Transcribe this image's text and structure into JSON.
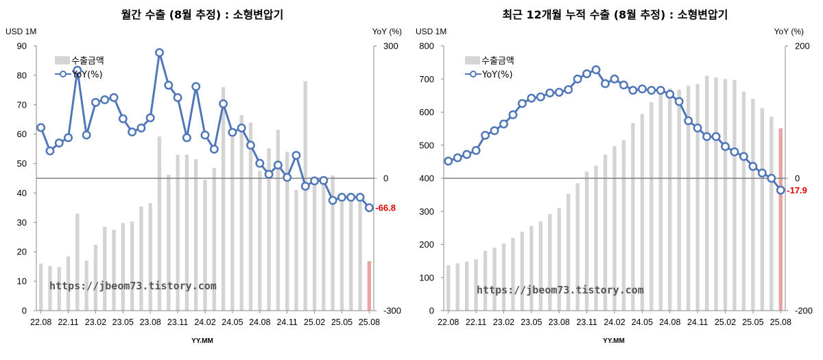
{
  "charts": [
    {
      "id": "monthly",
      "title": "월간 수출 (8월 추정) : 소형변압기",
      "left_unit": "USD 1M",
      "right_unit": "YoY (%)",
      "xlabel": "YY.MM",
      "watermark": "https://jbeom73.tistory.com",
      "last_label": "-66.8",
      "legend": [
        "수출금액",
        "YoY(%)"
      ],
      "left_ticks": [
        "0",
        "10",
        "20",
        "30",
        "40",
        "50",
        "60",
        "70",
        "80",
        "90"
      ],
      "right_ticks": [
        "300",
        "0",
        "-300"
      ],
      "x_ticks": [
        "22.08",
        "22.11",
        "23.02",
        "23.05",
        "23.08",
        "23.11",
        "24.02",
        "24.05",
        "24.08",
        "24.11",
        "25.02",
        "25.05",
        "25.08"
      ]
    },
    {
      "id": "trailing12",
      "title": "최근 12개월 누적 수출 (8월 추정) : 소형변압기",
      "left_unit": "USD 1M",
      "right_unit": "YoY (%)",
      "xlabel": "YY.MM",
      "watermark": "https://jbeom73.tistory.com",
      "last_label": "-17.9",
      "legend": [
        "수출금액",
        "YoY(%)"
      ],
      "left_ticks": [
        "0",
        "100",
        "200",
        "300",
        "400",
        "500",
        "600",
        "700",
        "800"
      ],
      "right_ticks": [
        "200",
        "0",
        "-200"
      ],
      "x_ticks": [
        "22.08",
        "22.11",
        "23.02",
        "23.05",
        "23.08",
        "23.11",
        "24.02",
        "24.05",
        "24.08",
        "24.11",
        "25.02",
        "25.05",
        "25.08"
      ]
    }
  ],
  "chart_data": [
    {
      "type": "bar",
      "title": "월간 수출 (8월 추정) : 소형변압기",
      "xlabel": "YY.MM",
      "ylabel": "USD 1M",
      "y2label": "YoY (%)",
      "ylim": [
        0,
        90
      ],
      "y2lim": [
        -300,
        300
      ],
      "categories": [
        "22.08",
        "22.09",
        "22.10",
        "22.11",
        "22.12",
        "23.01",
        "23.02",
        "23.03",
        "23.04",
        "23.05",
        "23.06",
        "23.07",
        "23.08",
        "23.09",
        "23.10",
        "23.11",
        "23.12",
        "24.01",
        "24.02",
        "24.03",
        "24.04",
        "24.05",
        "24.06",
        "24.07",
        "24.08",
        "24.09",
        "24.10",
        "24.11",
        "24.12",
        "25.01",
        "25.02",
        "25.03",
        "25.04",
        "25.05",
        "25.06",
        "25.07",
        "25.08"
      ],
      "series": [
        {
          "name": "수출금액",
          "type": "bar",
          "axis": "left",
          "values": [
            16,
            15.2,
            14.8,
            18.5,
            33,
            17,
            22.4,
            28.5,
            27.5,
            29.8,
            30.3,
            35.4,
            36.5,
            59.2,
            46.2,
            53,
            53,
            51.5,
            44.5,
            48.5,
            76,
            59,
            66.5,
            64,
            47.5,
            55.2,
            61.5,
            54,
            41,
            78,
            43,
            45,
            46,
            37,
            38,
            37,
            16.8
          ]
        },
        {
          "name": "YoY(%)",
          "type": "line",
          "axis": "right",
          "values": [
            115,
            62,
            80,
            92,
            245,
            98,
            172,
            178,
            183,
            135,
            105,
            114,
            137,
            285,
            211,
            183,
            92,
            208,
            98,
            66,
            169,
            104,
            114,
            75,
            34,
            9,
            30,
            2,
            52,
            -18,
            -6,
            -5,
            -50,
            -43,
            -43,
            -43,
            -66.8
          ]
        }
      ],
      "annotations": [
        "-66.8"
      ],
      "grid": false,
      "legend_position": "top-left"
    },
    {
      "type": "bar",
      "title": "최근 12개월 누적 수출 (8월 추정) : 소형변압기",
      "xlabel": "YY.MM",
      "ylabel": "USD 1M",
      "y2label": "YoY (%)",
      "ylim": [
        0,
        800
      ],
      "y2lim": [
        -200,
        200
      ],
      "categories": [
        "22.08",
        "22.09",
        "22.10",
        "22.11",
        "22.12",
        "23.01",
        "23.02",
        "23.03",
        "23.04",
        "23.05",
        "23.06",
        "23.07",
        "23.08",
        "23.09",
        "23.10",
        "23.11",
        "23.12",
        "24.01",
        "24.02",
        "24.03",
        "24.04",
        "24.05",
        "24.06",
        "24.07",
        "24.08",
        "24.09",
        "24.10",
        "24.11",
        "24.12",
        "25.01",
        "25.02",
        "25.03",
        "25.04",
        "25.05",
        "25.06",
        "25.07",
        "25.08"
      ],
      "series": [
        {
          "name": "수출금액",
          "type": "bar",
          "axis": "left",
          "values": [
            137,
            143,
            148,
            155,
            181,
            190,
            203,
            220,
            238,
            256,
            270,
            292,
            310,
            353,
            385,
            420,
            438,
            472,
            497,
            515,
            567,
            594,
            630,
            658,
            672,
            668,
            680,
            685,
            710,
            705,
            700,
            697,
            662,
            640,
            612,
            586,
            551
          ]
        },
        {
          "name": "YoY(%)",
          "type": "line",
          "axis": "right",
          "values": [
            26,
            31,
            36,
            42,
            65,
            72,
            82,
            96,
            113,
            121,
            123,
            129,
            130,
            134,
            150,
            158,
            164,
            143,
            150,
            141,
            133,
            135,
            133,
            133,
            127,
            116,
            87,
            76,
            63,
            63,
            48,
            40,
            33,
            18,
            8,
            0,
            -17.9
          ]
        }
      ],
      "annotations": [
        "-17.9"
      ],
      "grid": false,
      "legend_position": "top-left"
    }
  ],
  "colors": {
    "bar": "#d4d4d4",
    "last_bar": "#e8a3a3",
    "line": "#4e76b8",
    "marker_fill": "#ffffff",
    "zero_line": "#7f7f7f",
    "highlight_text": "#e00000"
  }
}
